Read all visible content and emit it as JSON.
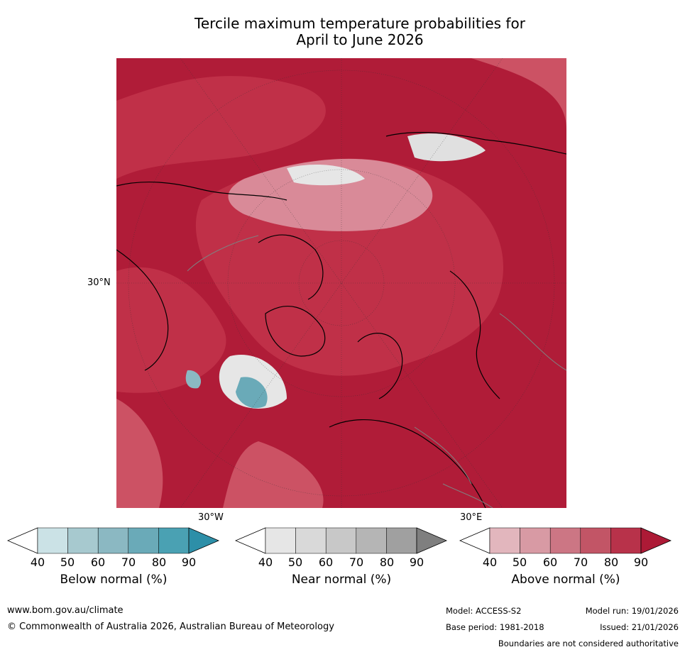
{
  "title_line1": "Tercile maximum temperature probabilities for",
  "title_line2": "April to June 2026",
  "map": {
    "lat_label": "30°N",
    "lon_label_west": "30°W",
    "lon_label_east": "30°E",
    "colors": {
      "above_90": "#b01c38",
      "above_80": "#c03048",
      "above_70": "#cc5264",
      "near_normal": "#e6e6e6",
      "below_70": "#6aaab8",
      "coastline": "#000000",
      "borders": "#808080"
    }
  },
  "legends": [
    {
      "id": "below",
      "label": "Below normal (%)",
      "ticks": [
        "40",
        "50",
        "60",
        "70",
        "80",
        "90"
      ],
      "colors": [
        "#cbe2e6",
        "#a7c9cf",
        "#8bb8c2",
        "#6aaab8",
        "#4aa1b3",
        "#2d8fa8"
      ]
    },
    {
      "id": "near",
      "label": "Near normal (%)",
      "ticks": [
        "40",
        "50",
        "60",
        "70",
        "80",
        "90"
      ],
      "colors": [
        "#e6e6e6",
        "#d9d9d9",
        "#c8c8c8",
        "#b5b5b5",
        "#a0a0a0",
        "#7f7f7f"
      ]
    },
    {
      "id": "above",
      "label": "Above normal (%)",
      "ticks": [
        "40",
        "50",
        "60",
        "70",
        "80",
        "90"
      ],
      "colors": [
        "#e2b6bd",
        "#d89aa4",
        "#cc7684",
        "#c25566",
        "#b8324a",
        "#ad1a36"
      ]
    }
  ],
  "footer": {
    "url": "www.bom.gov.au/climate",
    "copyright": "© Commonwealth of Australia 2026, Australian Bureau of Meteorology",
    "model": "Model: ACCESS-S2",
    "model_run": "Model run: 19/01/2026",
    "base_period": "Base period: 1981-2018",
    "issued": "Issued: 21/01/2026",
    "disclaimer": "Boundaries are not considered authoritative"
  }
}
